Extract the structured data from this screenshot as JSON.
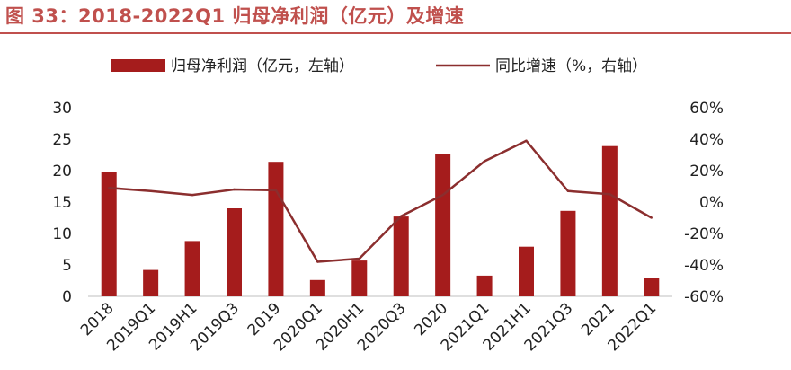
{
  "title": "图 33：2018-2022Q1 归母净利润（亿元）及增速",
  "colors": {
    "bar": "#a51c1c",
    "line": "#8b2e2e",
    "title": "#c0504d"
  },
  "chart_data": {
    "type": "bar",
    "categories": [
      "2018",
      "2019Q1",
      "2019H1",
      "2019Q3",
      "2019",
      "2020Q1",
      "2020H1",
      "2020Q3",
      "2020",
      "2021Q1",
      "2021H1",
      "2021Q3",
      "2021",
      "2022Q1"
    ],
    "series": [
      {
        "name": "归母净利润（亿元，左轴）",
        "type": "bar",
        "axis": "left",
        "values": [
          19.8,
          4.2,
          8.8,
          14.0,
          21.4,
          2.6,
          5.7,
          12.7,
          22.7,
          3.3,
          7.9,
          13.6,
          23.9,
          3.0
        ]
      },
      {
        "name": "同比增速（%，右轴）",
        "type": "line",
        "axis": "right",
        "values": [
          9,
          7,
          4.5,
          8,
          7.5,
          -38,
          -36,
          -9,
          4.5,
          26,
          39,
          7,
          5,
          -10
        ]
      }
    ],
    "left_axis": {
      "ylim": [
        0,
        30
      ],
      "ticks": [
        "0",
        "5",
        "10",
        "15",
        "20",
        "25",
        "30"
      ]
    },
    "right_axis": {
      "ylim": [
        -60,
        60
      ],
      "ticks": [
        "-60%",
        "-40%",
        "-20%",
        "0%",
        "20%",
        "40%",
        "60%"
      ]
    },
    "legend_position": "top-center",
    "grid": false
  }
}
